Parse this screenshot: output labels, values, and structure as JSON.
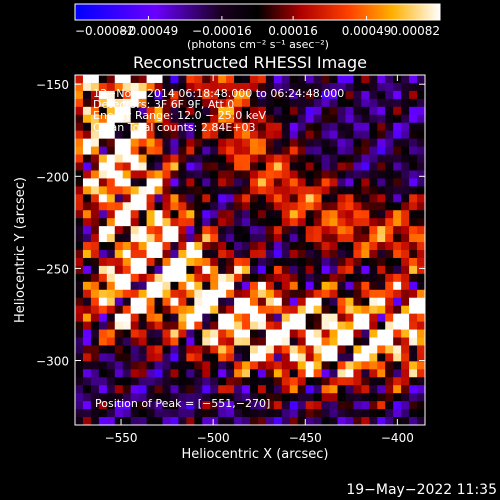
{
  "chart_data": {
    "type": "heatmap",
    "title": "Reconstructed RHESSI Image",
    "xlabel": "Heliocentric X (arcsec)",
    "ylabel": "Heliocentric Y (arcsec)",
    "xlim": [
      -575,
      -385
    ],
    "ylim": [
      -335,
      -145
    ],
    "x_ticks": [
      -550,
      -500,
      -450,
      -400
    ],
    "x_tick_labels": [
      "−550",
      "−500",
      "−450",
      "−400"
    ],
    "y_ticks": [
      -150,
      -200,
      -250,
      -300
    ],
    "y_tick_labels": [
      "−150",
      "−200",
      "−250",
      "−300"
    ],
    "colorbar": {
      "min": -0.00082,
      "max": 0.00082,
      "ticks": [
        -0.00082,
        -0.00049,
        -0.00016,
        0.00016,
        0.00049,
        0.00082
      ],
      "tick_labels": [
        "−0.00082",
        "−0.00049",
        "−0.00016",
        "0.00016",
        "0.00049",
        "0.00082"
      ],
      "unit_label": "(photons cm⁻² s⁻¹ asec⁻²)",
      "colormap": [
        "#0000ff",
        "#5a00ff",
        "#000000",
        "#ff0000",
        "#ffb000",
        "#ffffff"
      ]
    },
    "annotations": {
      "time": "13−Nov−2014 06:18:48.000 to 06:24:48.000",
      "detectors": "Detectors: 3F 6F 9F, Att 0",
      "energy": "Energy Range: 12.0 − 25.0 keV",
      "clean": "Clean    Total counts: 2.84E+03",
      "peak": "Position of Peak = [−551,−270]"
    },
    "peak_position": [
      -551,
      -270
    ],
    "grid": false
  },
  "footer": {
    "date": "19−May−2022 11:35"
  }
}
